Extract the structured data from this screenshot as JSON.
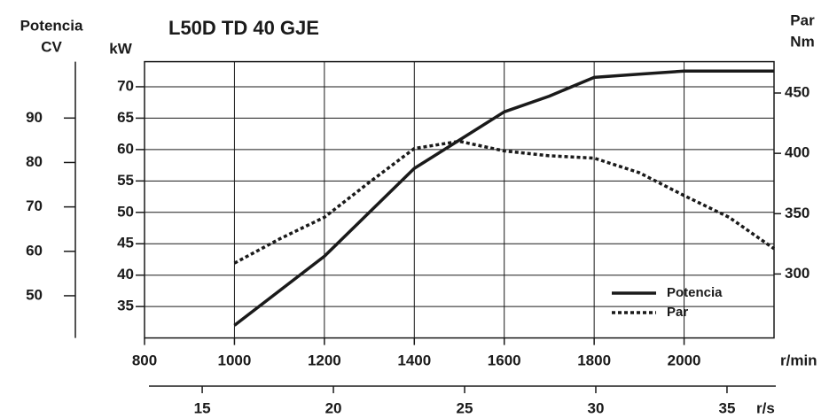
{
  "chart_data": {
    "type": "line",
    "title": "L50D  TD 40 GJE",
    "x": [
      1000,
      1100,
      1200,
      1300,
      1400,
      1500,
      1600,
      1700,
      1800,
      1900,
      2000,
      2100,
      2200
    ],
    "xlim": [
      800,
      2200
    ],
    "xticks": [
      800,
      1000,
      1200,
      1400,
      1600,
      1800,
      2000
    ],
    "xlabel": "r/min",
    "ylabel": "kW",
    "ylim": [
      30,
      74
    ],
    "yticks": [
      35,
      40,
      45,
      50,
      55,
      60,
      65,
      70
    ],
    "y2label": [
      "Par",
      "Nm"
    ],
    "y2lim": [
      247,
      476
    ],
    "y2ticks": [
      300,
      350,
      400,
      450
    ],
    "cv_axis": {
      "label": [
        "Potencia",
        "CV"
      ],
      "lim": [
        40.5,
        102.7
      ],
      "ticks": [
        50,
        60,
        70,
        80,
        90
      ]
    },
    "rs_axis": {
      "label": "r/s",
      "lim": [
        12.97,
        36.86
      ],
      "ticks": [
        15,
        20,
        25,
        30,
        35
      ]
    },
    "grid": true,
    "legend": "lower right",
    "series": [
      {
        "name": "Potencia",
        "color": "#1a1a1a",
        "style": "solid",
        "values": [
          32,
          37.5,
          43,
          50,
          57,
          61.5,
          66,
          68.5,
          71.5,
          72,
          72.5,
          72.5,
          72.5
        ]
      },
      {
        "name": "Par",
        "color": "#1a1a1a",
        "style": "dotted",
        "axis": "y2",
        "values": [
          309,
          329,
          347,
          376,
          404,
          410,
          402,
          398,
          396,
          384,
          365,
          347,
          321
        ]
      }
    ]
  }
}
